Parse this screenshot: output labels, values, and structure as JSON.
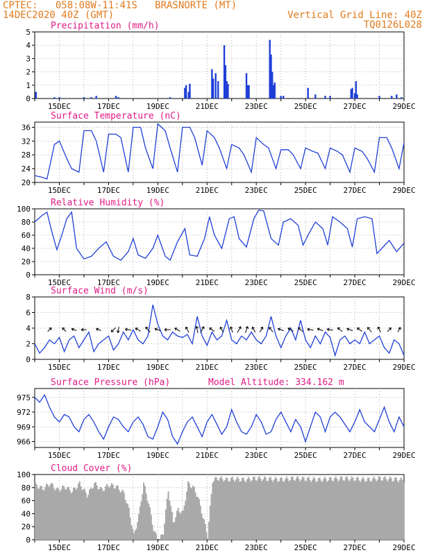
{
  "header": {
    "station_line": "CPTEC:   058:08W-11:41S   BRASNORTE (MT)",
    "date_line": "14DEC2020 40Z (GMT)",
    "grid_line_text": "Vertical Grid Line: 40Z",
    "code": "TQ0126L028"
  },
  "colors": {
    "header": "#e07a1c",
    "title": "#e01b86",
    "line": "#1f3fd6",
    "bar": "#1f3fd6",
    "cloud": "#a9a9a9"
  },
  "x_axis": {
    "ticks": [
      {
        "label": "15DEC",
        "day": 15
      },
      {
        "label": "17DEC",
        "day": 17
      },
      {
        "label": "19DEC",
        "day": 19
      },
      {
        "label": "21DEC",
        "day": 21
      },
      {
        "label": "23DEC",
        "day": 23
      },
      {
        "label": "25DEC",
        "day": 25
      },
      {
        "label": "27DEC",
        "day": 27
      },
      {
        "label": "29DEC",
        "day": 29
      }
    ],
    "range_days": [
      14,
      29
    ]
  },
  "chart_data": [
    {
      "id": "precip",
      "type": "bar",
      "title": "Precipitation (mm/h)",
      "ylim": [
        0,
        5
      ],
      "yticks": [
        0,
        1,
        2,
        3,
        4,
        5
      ],
      "x_units": "days since 00Z 14DEC2020",
      "x": [
        14.05,
        14.8,
        15.0,
        16.0,
        16.3,
        16.5,
        17.3,
        17.4,
        19.5,
        20.1,
        20.15,
        20.25,
        20.3,
        21.2,
        21.25,
        21.35,
        21.45,
        21.7,
        21.75,
        21.8,
        21.85,
        22.6,
        22.65,
        22.7,
        23.55,
        23.6,
        23.65,
        23.7,
        23.75,
        24.0,
        24.1,
        25.1,
        25.4,
        25.8,
        26.0,
        26.85,
        26.9,
        27.0,
        27.05,
        27.1,
        28.0,
        28.5,
        28.7,
        28.9
      ],
      "values": [
        0.5,
        0.1,
        0.1,
        0.1,
        0.1,
        0.2,
        0.2,
        0.1,
        0.1,
        0.8,
        1.0,
        0.5,
        1.1,
        2.2,
        1.5,
        1.9,
        1.3,
        4.0,
        2.5,
        1.3,
        1.1,
        1.9,
        1.0,
        1.0,
        4.4,
        3.3,
        2.0,
        1.0,
        1.2,
        0.2,
        0.2,
        0.8,
        0.3,
        0.2,
        0.2,
        0.7,
        0.8,
        0.4,
        1.3,
        0.3,
        0.2,
        0.2,
        0.3,
        0.1
      ]
    },
    {
      "id": "temp",
      "type": "line",
      "title": "Surface Temperature (nC)",
      "ylim": [
        20,
        37.5
      ],
      "yticks": [
        20,
        24,
        28,
        32,
        36
      ],
      "x_units": "days since 00Z 14DEC2020",
      "x": [
        14.0,
        14.3,
        14.5,
        14.8,
        15.0,
        15.3,
        15.5,
        15.8,
        16.0,
        16.3,
        16.5,
        16.8,
        17.0,
        17.3,
        17.5,
        17.8,
        18.0,
        18.3,
        18.5,
        18.8,
        19.0,
        19.3,
        19.5,
        19.8,
        20.0,
        20.3,
        20.5,
        20.8,
        21.0,
        21.3,
        21.5,
        21.8,
        22.0,
        22.3,
        22.5,
        22.8,
        23.0,
        23.3,
        23.5,
        23.8,
        24.0,
        24.3,
        24.5,
        24.8,
        25.0,
        25.3,
        25.5,
        25.8,
        26.0,
        26.3,
        26.5,
        26.8,
        27.0,
        27.3,
        27.5,
        27.8,
        28.0,
        28.3,
        28.5,
        28.8,
        29.0
      ],
      "values": [
        22,
        21.5,
        21,
        31,
        32,
        27,
        24,
        23,
        35,
        35,
        32,
        23,
        34,
        34,
        33,
        23,
        36,
        36,
        30,
        24,
        37,
        35,
        30,
        23,
        36,
        36,
        33,
        25,
        35,
        33,
        30,
        24,
        31,
        30,
        28,
        23,
        33,
        31,
        30,
        24,
        29.5,
        29.5,
        28,
        24,
        30,
        29,
        28.5,
        24,
        30,
        29,
        28,
        23,
        30,
        29,
        27,
        23,
        33,
        33,
        30,
        24,
        31.5
      ]
    },
    {
      "id": "rh",
      "type": "line",
      "title": "Relative Humidity (%)",
      "ylim": [
        0,
        100
      ],
      "yticks": [
        0,
        20,
        40,
        60,
        80,
        100
      ],
      "x_units": "days since 00Z 14DEC2020",
      "x": [
        14.0,
        14.3,
        14.5,
        14.7,
        14.9,
        15.1,
        15.3,
        15.5,
        15.7,
        16.0,
        16.3,
        16.6,
        16.9,
        17.2,
        17.5,
        17.8,
        18.0,
        18.2,
        18.5,
        18.8,
        19.0,
        19.3,
        19.5,
        19.8,
        20.1,
        20.3,
        20.6,
        20.9,
        21.1,
        21.3,
        21.6,
        21.9,
        22.1,
        22.3,
        22.6,
        22.9,
        23.1,
        23.3,
        23.6,
        23.9,
        24.1,
        24.4,
        24.7,
        24.9,
        25.1,
        25.4,
        25.7,
        25.9,
        26.1,
        26.4,
        26.7,
        26.9,
        27.1,
        27.4,
        27.7,
        27.9,
        28.1,
        28.4,
        28.7,
        29.0
      ],
      "values": [
        80,
        90,
        95,
        65,
        38,
        60,
        85,
        95,
        40,
        24,
        28,
        40,
        50,
        28,
        22,
        35,
        55,
        30,
        25,
        40,
        60,
        28,
        22,
        50,
        70,
        30,
        28,
        55,
        88,
        60,
        40,
        85,
        88,
        55,
        42,
        85,
        98,
        97,
        55,
        45,
        80,
        85,
        75,
        45,
        60,
        80,
        70,
        45,
        88,
        80,
        70,
        42,
        85,
        88,
        85,
        32,
        40,
        52,
        35,
        48
      ]
    },
    {
      "id": "wind",
      "type": "line",
      "title": "Surface Wind (m/s)",
      "ylim": [
        0,
        8
      ],
      "yticks": [
        0,
        2,
        4,
        6,
        8
      ],
      "x_units": "days since 00Z 14DEC2020",
      "x": [
        14.0,
        14.2,
        14.4,
        14.6,
        14.8,
        15.0,
        15.2,
        15.4,
        15.6,
        15.8,
        16.0,
        16.2,
        16.4,
        16.6,
        16.8,
        17.0,
        17.2,
        17.4,
        17.6,
        17.8,
        18.0,
        18.2,
        18.4,
        18.6,
        18.8,
        19.0,
        19.2,
        19.4,
        19.6,
        19.8,
        20.0,
        20.2,
        20.4,
        20.6,
        20.8,
        21.0,
        21.2,
        21.4,
        21.6,
        21.8,
        22.0,
        22.2,
        22.4,
        22.6,
        22.8,
        23.0,
        23.2,
        23.4,
        23.6,
        23.8,
        24.0,
        24.2,
        24.4,
        24.6,
        24.8,
        25.0,
        25.2,
        25.4,
        25.6,
        25.8,
        26.0,
        26.2,
        26.4,
        26.6,
        26.8,
        27.0,
        27.2,
        27.4,
        27.6,
        27.8,
        28.0,
        28.2,
        28.4,
        28.6,
        28.8,
        29.0
      ],
      "values": [
        2.0,
        0.8,
        1.5,
        2.5,
        2.0,
        2.8,
        1.0,
        2.5,
        3.0,
        1.5,
        2.5,
        3.5,
        1.0,
        2.0,
        2.5,
        3.0,
        1.2,
        2.0,
        3.5,
        2.5,
        3.8,
        2.5,
        2.0,
        3.0,
        7.0,
        4.5,
        3.0,
        2.5,
        3.5,
        3.0,
        2.8,
        3.2,
        2.0,
        5.5,
        3.0,
        1.8,
        3.5,
        2.5,
        3.0,
        5.0,
        2.5,
        2.0,
        3.0,
        2.5,
        3.5,
        2.5,
        2.0,
        3.0,
        5.5,
        3.0,
        1.5,
        3.0,
        4.0,
        2.5,
        5.0,
        2.5,
        1.5,
        3.0,
        2.0,
        3.5,
        2.8,
        0.5,
        2.5,
        3.0,
        2.0,
        2.5,
        2.0,
        3.5,
        2.0,
        2.5,
        3.0,
        1.5,
        0.8,
        2.5,
        2.0,
        0.5
      ],
      "vector_x": [
        14.6,
        15.2,
        15.6,
        16.0,
        16.6,
        17.2,
        17.4,
        17.8,
        18.2,
        18.6,
        19.0,
        19.4,
        19.8,
        20.2,
        20.6,
        20.8,
        21.2,
        21.6,
        22.0,
        22.3,
        22.6,
        22.9,
        23.2,
        23.6,
        24.0,
        24.4,
        24.8,
        25.2,
        25.6,
        26.0,
        26.4,
        26.8,
        27.2,
        27.6,
        28.0,
        28.4,
        28.8
      ],
      "vector_dir_deg": [
        315,
        225,
        200,
        180,
        200,
        135,
        100,
        190,
        210,
        230,
        200,
        180,
        210,
        240,
        260,
        300,
        215,
        240,
        250,
        300,
        290,
        240,
        300,
        230,
        200,
        210,
        220,
        190,
        200,
        190,
        220,
        200,
        215,
        230,
        245,
        315,
        300
      ],
      "vector_speed": [
        2,
        2,
        2,
        2,
        2,
        3,
        3,
        3,
        3,
        4,
        3,
        3,
        3,
        3,
        4,
        4,
        3,
        3,
        3,
        4,
        4,
        3,
        3,
        3,
        3,
        3,
        3,
        3,
        3,
        3,
        3,
        3,
        3,
        3,
        3,
        2,
        2
      ]
    },
    {
      "id": "pressure",
      "type": "line",
      "title": "Surface Pressure (hPa)",
      "annotation": "Model Altitude: 334.162 m",
      "ylim": [
        964.8,
        976.8
      ],
      "yticks": [
        966,
        969,
        972,
        975
      ],
      "x_units": "days since 00Z 14DEC2020",
      "x": [
        14.0,
        14.2,
        14.4,
        14.6,
        14.8,
        15.0,
        15.2,
        15.4,
        15.6,
        15.8,
        16.0,
        16.2,
        16.4,
        16.6,
        16.8,
        17.0,
        17.2,
        17.4,
        17.6,
        17.8,
        18.0,
        18.2,
        18.4,
        18.6,
        18.8,
        19.0,
        19.2,
        19.4,
        19.6,
        19.8,
        20.0,
        20.2,
        20.4,
        20.6,
        20.8,
        21.0,
        21.2,
        21.4,
        21.6,
        21.8,
        22.0,
        22.2,
        22.4,
        22.6,
        22.8,
        23.0,
        23.2,
        23.4,
        23.6,
        23.8,
        24.0,
        24.2,
        24.4,
        24.6,
        24.8,
        25.0,
        25.2,
        25.4,
        25.6,
        25.8,
        26.0,
        26.2,
        26.4,
        26.8,
        27.0,
        27.2,
        27.4,
        27.6,
        27.8,
        28.0,
        28.2,
        28.4,
        28.6,
        28.8,
        29.0
      ],
      "values": [
        975.0,
        974.0,
        975.5,
        973.0,
        971.0,
        970.0,
        971.5,
        971.0,
        969.0,
        968.0,
        970.5,
        971.5,
        970.0,
        968.0,
        966.5,
        969.0,
        971.0,
        970.5,
        969.0,
        968.0,
        970.0,
        971.0,
        969.5,
        967.0,
        966.5,
        969.0,
        972.0,
        970.5,
        967.0,
        965.5,
        968.0,
        970.0,
        971.0,
        969.0,
        967.0,
        970.0,
        971.5,
        969.5,
        967.5,
        969.0,
        972.5,
        970.0,
        968.0,
        967.5,
        969.0,
        971.5,
        970.0,
        967.5,
        968.0,
        970.5,
        972.0,
        970.0,
        968.0,
        970.5,
        969.0,
        966.0,
        969.0,
        972.0,
        971.0,
        968.0,
        971.0,
        972.0,
        971.0,
        968.0,
        970.0,
        972.5,
        970.0,
        969.0,
        968.0,
        970.5,
        973.0,
        970.0,
        968.0,
        971.0,
        969.0
      ]
    },
    {
      "id": "cloud",
      "type": "area",
      "title": "Cloud Cover (%)",
      "ylim": [
        0,
        100
      ],
      "yticks": [
        0,
        20,
        40,
        60,
        80,
        100
      ],
      "x_units": "days since 00Z 14DEC2020",
      "x": [
        14.0,
        14.3,
        14.6,
        14.9,
        15.2,
        15.5,
        15.8,
        16.1,
        16.4,
        16.7,
        17.0,
        17.3,
        17.6,
        17.8,
        18.0,
        18.2,
        18.4,
        18.6,
        18.8,
        19.0,
        19.2,
        19.4,
        19.6,
        19.8,
        20.0,
        20.2,
        20.4,
        20.6,
        20.8,
        21.0,
        21.2,
        21.4,
        21.6,
        21.8,
        22.0,
        22.5,
        23.0,
        23.5,
        24.0,
        24.5,
        25.0,
        25.5,
        26.0,
        26.5,
        27.0,
        27.5,
        28.0,
        28.5,
        29.0
      ],
      "values": [
        88,
        82,
        90,
        80,
        85,
        78,
        90,
        72,
        90,
        80,
        88,
        85,
        75,
        50,
        10,
        40,
        90,
        60,
        20,
        0,
        15,
        80,
        30,
        50,
        45,
        90,
        85,
        70,
        40,
        10,
        95,
        98,
        97,
        96,
        97,
        96,
        98,
        97,
        96,
        98,
        97,
        96,
        97,
        98,
        97,
        96,
        98,
        97,
        95
      ]
    }
  ]
}
